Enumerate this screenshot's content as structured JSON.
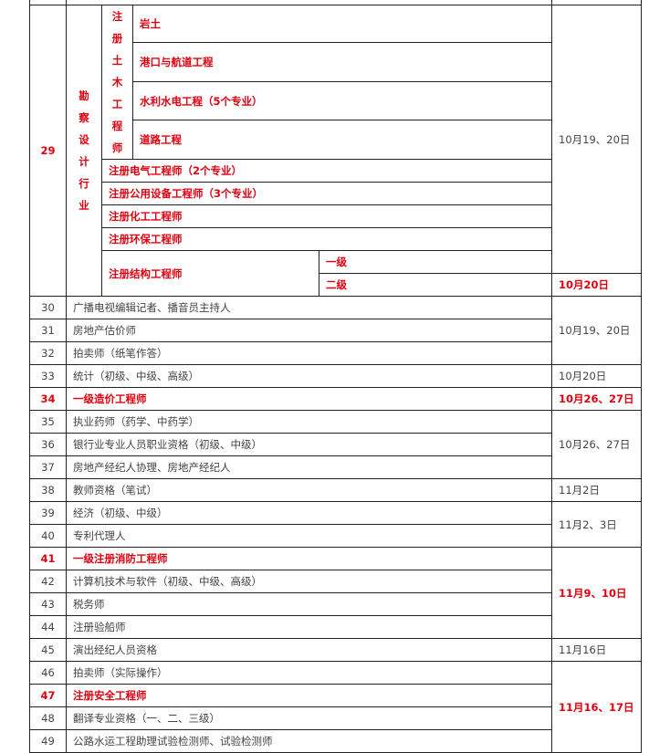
{
  "colors": {
    "highlight": "#e0000f",
    "text": "#444444",
    "border": "#222222"
  },
  "row29": {
    "num": "29",
    "category": "勘察设计行业",
    "subcategory": "注册土木工程师",
    "civil_items": [
      "岩土",
      "港口与航道工程",
      "水利水电工程（5个专业）",
      "道路工程"
    ],
    "other_items": [
      "注册电气工程师（2个专业）",
      "注册公用设备工程师（3个专业）",
      "注册化工工程师",
      "注册环保工程师"
    ],
    "structural": {
      "name": "注册结构工程师",
      "levels": [
        "一级",
        "二级"
      ]
    },
    "date_main": "10月19、20日",
    "date_level2": "10月20日"
  },
  "rows": [
    {
      "num": "30",
      "name": "广播电视编辑记者、播音员主持人",
      "highlight": false
    },
    {
      "num": "31",
      "name": "房地产估价师",
      "highlight": false
    },
    {
      "num": "32",
      "name": "拍卖师（纸笔作答）",
      "highlight": false
    },
    {
      "num": "33",
      "name": "统计（初级、中级、高级）",
      "highlight": false
    },
    {
      "num": "34",
      "name": "一级造价工程师",
      "highlight": true
    },
    {
      "num": "35",
      "name": "执业药师（药学、中药学）",
      "highlight": false
    },
    {
      "num": "36",
      "name": "银行业专业人员职业资格（初级、中级）",
      "highlight": false
    },
    {
      "num": "37",
      "name": "房地产经纪人协理、房地产经纪人",
      "highlight": false
    },
    {
      "num": "38",
      "name": "教师资格（笔试）",
      "highlight": false
    },
    {
      "num": "39",
      "name": "经济（初级、中级）",
      "highlight": false
    },
    {
      "num": "40",
      "name": "专利代理人",
      "highlight": false
    },
    {
      "num": "41",
      "name": "一级注册消防工程师",
      "highlight": true
    },
    {
      "num": "42",
      "name": "计算机技术与软件（初级、中级、高级）",
      "highlight": false
    },
    {
      "num": "43",
      "name": "税务师",
      "highlight": false
    },
    {
      "num": "44",
      "name": "注册验船师",
      "highlight": false
    },
    {
      "num": "45",
      "name": "演出经纪人员资格",
      "highlight": false
    },
    {
      "num": "46",
      "name": "拍卖师（实际操作）",
      "highlight": false
    },
    {
      "num": "47",
      "name": "注册安全工程师",
      "highlight": true
    },
    {
      "num": "48",
      "name": "翻译专业资格（一、二、三级）",
      "highlight": false
    },
    {
      "num": "49",
      "name": "公路水运工程助理试验检测师、试验检测师",
      "highlight": false
    }
  ],
  "date_groups": [
    {
      "label": "10月19、20日",
      "row_count": 3,
      "highlight": false
    },
    {
      "label": "10月20日",
      "row_count": 1,
      "highlight": false
    },
    {
      "label": "10月26、27日",
      "row_count": 1,
      "highlight": true
    },
    {
      "label": "10月26、27日",
      "row_count": 3,
      "highlight": false
    },
    {
      "label": "11月2日",
      "row_count": 1,
      "highlight": false
    },
    {
      "label": "11月2、3日",
      "row_count": 2,
      "highlight": false
    },
    {
      "label": "11月9、10日",
      "row_count": 4,
      "highlight": true
    },
    {
      "label": "11月16日",
      "row_count": 1,
      "highlight": false
    },
    {
      "label": "11月16、17日",
      "row_count": 4,
      "highlight": true
    }
  ]
}
